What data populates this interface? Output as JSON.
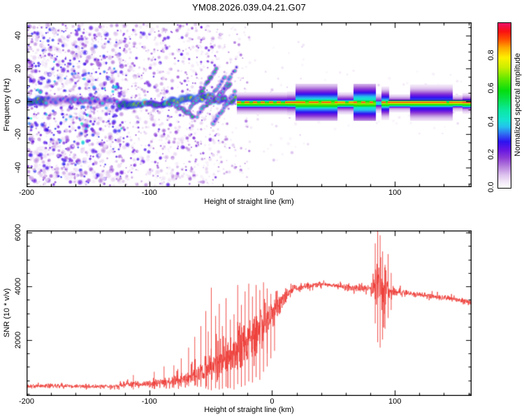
{
  "chart_data": [
    {
      "type": "heatmap",
      "title": "YM08.2026.039.04.21.G07",
      "xlabel": "Height of straight line (km)",
      "ylabel": "Frequency (Hz)",
      "xlim": [
        -200,
        162.5
      ],
      "ylim": [
        -52,
        48
      ],
      "xticks": {
        "values": [
          -200,
          -100,
          0,
          100
        ],
        "labels": [
          "-200",
          "-100",
          "0",
          "100"
        ],
        "minor_step": 20
      },
      "yticks": {
        "values": [
          -40,
          -20,
          0,
          20,
          40
        ],
        "labels": [
          "-40",
          "-20",
          "0",
          "20",
          "40"
        ],
        "minor_step": 5
      },
      "grid": false,
      "frame_color": "#000000",
      "colorbar": {
        "label": "Normalized spectral amplitude",
        "range": [
          0,
          1
        ],
        "ticks": {
          "values": [
            0,
            0.2,
            0.4,
            0.6,
            0.8
          ],
          "labels": [
            "0.0",
            "0.2",
            "0.4",
            "0.6",
            "0.8"
          ]
        },
        "stops": [
          [
            0,
            "#ffffff"
          ],
          [
            0.04,
            "#f1e5f7"
          ],
          [
            0.08,
            "#dcc0ee"
          ],
          [
            0.13,
            "#b57fdc"
          ],
          [
            0.18,
            "#8f3ed6"
          ],
          [
            0.23,
            "#6616e2"
          ],
          [
            0.28,
            "#2d12f0"
          ],
          [
            0.33,
            "#2e72f2"
          ],
          [
            0.37,
            "#24c0ee"
          ],
          [
            0.41,
            "#14e2d2"
          ],
          [
            0.47,
            "#0be8a2"
          ],
          [
            0.53,
            "#07e254"
          ],
          [
            0.59,
            "#05dd0e"
          ],
          [
            0.66,
            "#5fe800"
          ],
          [
            0.73,
            "#c9ee00"
          ],
          [
            0.79,
            "#fdf000"
          ],
          [
            0.85,
            "#ffa800"
          ],
          [
            0.9,
            "#ff5000"
          ],
          [
            0.95,
            "#fa0f12"
          ],
          [
            1,
            "#ec0e68"
          ]
        ]
      },
      "features": {
        "noise_regions": [
          {
            "x": [
              -200,
              -122
            ],
            "f": [
              -51,
              47
            ],
            "count": 1250,
            "amp": [
              0.03,
              0.3
            ],
            "r": [
              1.5,
              4.5
            ]
          },
          {
            "x": [
              -200,
              -120
            ],
            "f": [
              -26,
              26
            ],
            "count": 95,
            "amp": [
              0.24,
              0.44
            ],
            "r": [
              2.0,
              3.5
            ]
          },
          {
            "x": [
              -122,
              -72
            ],
            "f": [
              -51,
              47
            ],
            "count": 520,
            "amp": [
              0.03,
              0.26
            ],
            "r": [
              1.5,
              4.0
            ]
          },
          {
            "x": [
              -72,
              -42
            ],
            "f": [
              -51,
              47
            ],
            "count": 300,
            "amp": [
              0.03,
              0.24
            ],
            "r": [
              1.5,
              3.5
            ]
          },
          {
            "x": [
              -42,
              -18
            ],
            "f": [
              -48,
              45
            ],
            "count": 110,
            "amp": [
              0.03,
              0.18
            ],
            "r": [
              1.5,
              3.0
            ]
          },
          {
            "x": [
              -18,
              30
            ],
            "f": [
              -40,
              40
            ],
            "count": 45,
            "amp": [
              0.02,
              0.1
            ],
            "r": [
              1.5,
              3.0
            ]
          },
          {
            "x": [
              30,
              162
            ],
            "f": [
              -20,
              20
            ],
            "count": 55,
            "amp": [
              0.02,
              0.08
            ],
            "r": [
              1.5,
              3.0
            ]
          }
        ],
        "chain": [
          {
            "x": [
              -200,
              -184
            ],
            "f": [
              0.5,
              0.5
            ],
            "amp": 0.62,
            "r": 3.4,
            "spacing": 2.5,
            "jitter": 1.2
          },
          {
            "x": [
              -184,
              -126
            ],
            "f": [
              0.5,
              0.0
            ],
            "amp": 0.34,
            "r": 3.0,
            "spacing": 3.5,
            "jitter": 1.6
          },
          {
            "x": [
              -124,
              -88
            ],
            "f": [
              -1.5,
              -1.5
            ],
            "amp": 0.6,
            "r": 3.2,
            "spacing": 3.0,
            "jitter": 1.0
          },
          {
            "x": [
              -88,
              -56
            ],
            "f": [
              -1.0,
              2.5
            ],
            "amp": 0.66,
            "r": 3.2,
            "spacing": 2.6,
            "jitter": 1.2
          },
          {
            "x": [
              -56,
              -30
            ],
            "f": [
              2.5,
              1.0
            ],
            "amp": 0.6,
            "r": 3.0,
            "spacing": 2.4,
            "jitter": 2.2
          }
        ],
        "streaks": [
          {
            "x": [
              -68,
              -45
            ],
            "f": [
              -6,
              20
            ],
            "amp": 0.45
          },
          {
            "x": [
              -61,
              -38
            ],
            "f": [
              -9,
              15
            ],
            "amp": 0.4
          },
          {
            "x": [
              -53,
              -33
            ],
            "f": [
              -3,
              11
            ],
            "amp": 0.5
          },
          {
            "x": [
              -48,
              -30
            ],
            "f": [
              -13,
              6
            ],
            "amp": 0.35
          },
          {
            "x": [
              -80,
              -64
            ],
            "f": [
              -2,
              -9
            ],
            "amp": 0.45
          },
          {
            "x": [
              -44,
              -28
            ],
            "f": [
              2,
              22
            ],
            "amp": 0.35
          }
        ],
        "band": {
          "center_hz": -0.5,
          "core_sigma_hz": 0.75,
          "skirt_amp": 0.68,
          "gap_core_amp": 0.55,
          "segments": [
            {
              "x": [
                -29,
                12
              ],
              "sigma": 1.6,
              "peak": 0.96,
              "halo": [
                0.28,
                3.2
              ],
              "dash": [
                3.5,
                3
              ]
            },
            {
              "x": [
                12,
                19
              ],
              "sigma": 1.7,
              "peak": 0.95,
              "halo": [
                0.28,
                3.4
              ],
              "dash": [
                8,
                2
              ]
            },
            {
              "x": [
                19,
                53
              ],
              "sigma": 2.7,
              "peak": 0.95,
              "halo": [
                0.42,
                6.0
              ],
              "dash": [
                8,
                2.5
              ]
            },
            {
              "x": [
                53,
                66
              ],
              "sigma": 1.7,
              "peak": 0.9,
              "halo": [
                0.28,
                3.2
              ],
              "dash": [
                6,
                3
              ]
            },
            {
              "x": [
                66,
                84
              ],
              "sigma": 2.4,
              "peak": 0.97,
              "halo": [
                0.45,
                6.5
              ],
              "dash": [
                3,
                3.5
              ]
            },
            {
              "x": [
                84,
                89
              ],
              "sigma": 1.3,
              "peak": 0.42,
              "halo": [
                0.22,
                3.0
              ],
              "dash": [
                2,
                2
              ]
            },
            {
              "x": [
                89,
                95
              ],
              "sigma": 2.0,
              "peak": 0.97,
              "halo": [
                0.4,
                4.5
              ],
              "dash": [
                3,
                2
              ]
            },
            {
              "x": [
                95,
                112
              ],
              "sigma": 1.5,
              "peak": 0.94,
              "halo": [
                0.22,
                2.8
              ],
              "dash": [
                30,
                2
              ]
            },
            {
              "x": [
                112,
                147
              ],
              "sigma": 1.6,
              "peak": 0.94,
              "halo": [
                0.34,
                5.2
              ],
              "dash": [
                30,
                2
              ]
            },
            {
              "x": [
                147,
                155
              ],
              "sigma": 1.4,
              "peak": 0.93,
              "halo": [
                0.22,
                2.6
              ],
              "dash": [
                20,
                2
              ]
            },
            {
              "x": [
                155,
                162.5
              ],
              "sigma": 1.8,
              "peak": 0.98,
              "halo": [
                0.26,
                3.0
              ],
              "dash": [
                20,
                1
              ]
            }
          ],
          "dark_line": {
            "x": [
              95,
              162.5
            ],
            "f": 0.7,
            "color": "#1b1b70"
          }
        }
      }
    },
    {
      "type": "line",
      "title": "",
      "xlabel": "Height of straight line (km)",
      "ylabel": "SNR (10 * v/v)",
      "color": "#ee3933",
      "xlim": [
        -200,
        162.5
      ],
      "ylim": [
        -80,
        6080
      ],
      "xticks": {
        "values": [
          -200,
          -100,
          0,
          100
        ],
        "labels": [
          "-200",
          "-100",
          "0",
          "100"
        ],
        "minor_step": 20
      },
      "yticks": {
        "values": [
          2000,
          4000,
          6000
        ],
        "labels": [
          "2000",
          "4000",
          "6000"
        ],
        "minor_step": 500
      },
      "grid": false,
      "frame_color": "#000000",
      "envelope": [
        [
          -200,
          290,
          140
        ],
        [
          -185,
          300,
          140
        ],
        [
          -170,
          290,
          130
        ],
        [
          -155,
          280,
          120
        ],
        [
          -140,
          280,
          120
        ],
        [
          -128,
          290,
          130
        ],
        [
          -118,
          380,
          220
        ],
        [
          -110,
          350,
          200
        ],
        [
          -102,
          360,
          220
        ],
        [
          -94,
          420,
          280
        ],
        [
          -86,
          450,
          320
        ],
        [
          -78,
          500,
          380
        ],
        [
          -71,
          560,
          450
        ],
        [
          -64,
          650,
          550
        ],
        [
          -58,
          800,
          700
        ],
        [
          -52,
          950,
          850
        ],
        [
          -47,
          1100,
          1000
        ],
        [
          -42,
          1250,
          1150
        ],
        [
          -37,
          1400,
          1300
        ],
        [
          -32,
          1500,
          1400
        ],
        [
          -27,
          1700,
          1500
        ],
        [
          -22,
          1900,
          1500
        ],
        [
          -17,
          2100,
          1500
        ],
        [
          -12,
          2300,
          1400
        ],
        [
          -8,
          2500,
          1300
        ],
        [
          -4,
          2750,
          1200
        ],
        [
          0,
          3000,
          1000
        ],
        [
          4,
          3250,
          800
        ],
        [
          6,
          3300,
          700
        ],
        [
          10,
          3600,
          500
        ],
        [
          14,
          3800,
          350
        ],
        [
          18,
          3900,
          280
        ],
        [
          22,
          3950,
          240
        ],
        [
          26,
          4000,
          200
        ],
        [
          34,
          4060,
          190
        ],
        [
          42,
          4080,
          180
        ],
        [
          50,
          4040,
          180
        ],
        [
          58,
          4000,
          190
        ],
        [
          66,
          3950,
          210
        ],
        [
          74,
          3900,
          240
        ],
        [
          79,
          3920,
          350
        ],
        [
          83,
          4000,
          1000
        ],
        [
          86,
          4100,
          1700
        ],
        [
          89,
          4000,
          1700
        ],
        [
          92,
          3950,
          1300
        ],
        [
          95,
          3850,
          700
        ],
        [
          98,
          3800,
          350
        ],
        [
          104,
          3780,
          240
        ],
        [
          112,
          3730,
          210
        ],
        [
          122,
          3680,
          195
        ],
        [
          132,
          3620,
          185
        ],
        [
          142,
          3570,
          175
        ],
        [
          152,
          3490,
          170
        ],
        [
          162,
          3400,
          170
        ]
      ],
      "spikes": [
        [
          -113,
          700,
          160
        ],
        [
          -96,
          820,
          180
        ],
        [
          -88,
          1020,
          240
        ],
        [
          -80,
          1060,
          220
        ],
        [
          -74,
          1320,
          260
        ],
        [
          -68,
          1720,
          280
        ],
        [
          -63,
          2120,
          300
        ],
        [
          -58,
          2520,
          260
        ],
        [
          -54,
          3080,
          200
        ],
        [
          -52,
          2320,
          160
        ],
        [
          -49.5,
          3950,
          130
        ],
        [
          -46,
          2900,
          210
        ],
        [
          -43,
          3350,
          160
        ],
        [
          -40.5,
          2520,
          190
        ],
        [
          -37.5,
          3560,
          260
        ],
        [
          -34,
          2760,
          210
        ],
        [
          -31,
          2960,
          160
        ],
        [
          -28,
          4050,
          360
        ],
        [
          -25,
          3310,
          260
        ],
        [
          -22,
          3810,
          310
        ],
        [
          -19,
          4100,
          460
        ],
        [
          -16,
          3620,
          420
        ],
        [
          -13,
          4050,
          620
        ],
        [
          -10,
          3860,
          520
        ],
        [
          -7,
          4150,
          820
        ],
        [
          -4,
          3920,
          1020
        ],
        [
          -1,
          3720,
          1320
        ],
        [
          2,
          3500,
          1600
        ],
        [
          84,
          5600,
          2620
        ],
        [
          86,
          6070,
          1920
        ],
        [
          88,
          5900,
          1720
        ],
        [
          90,
          5300,
          2020
        ],
        [
          92,
          4800,
          2420
        ],
        [
          94.5,
          5200,
          2820
        ],
        [
          97,
          4500,
          3120
        ]
      ]
    }
  ]
}
